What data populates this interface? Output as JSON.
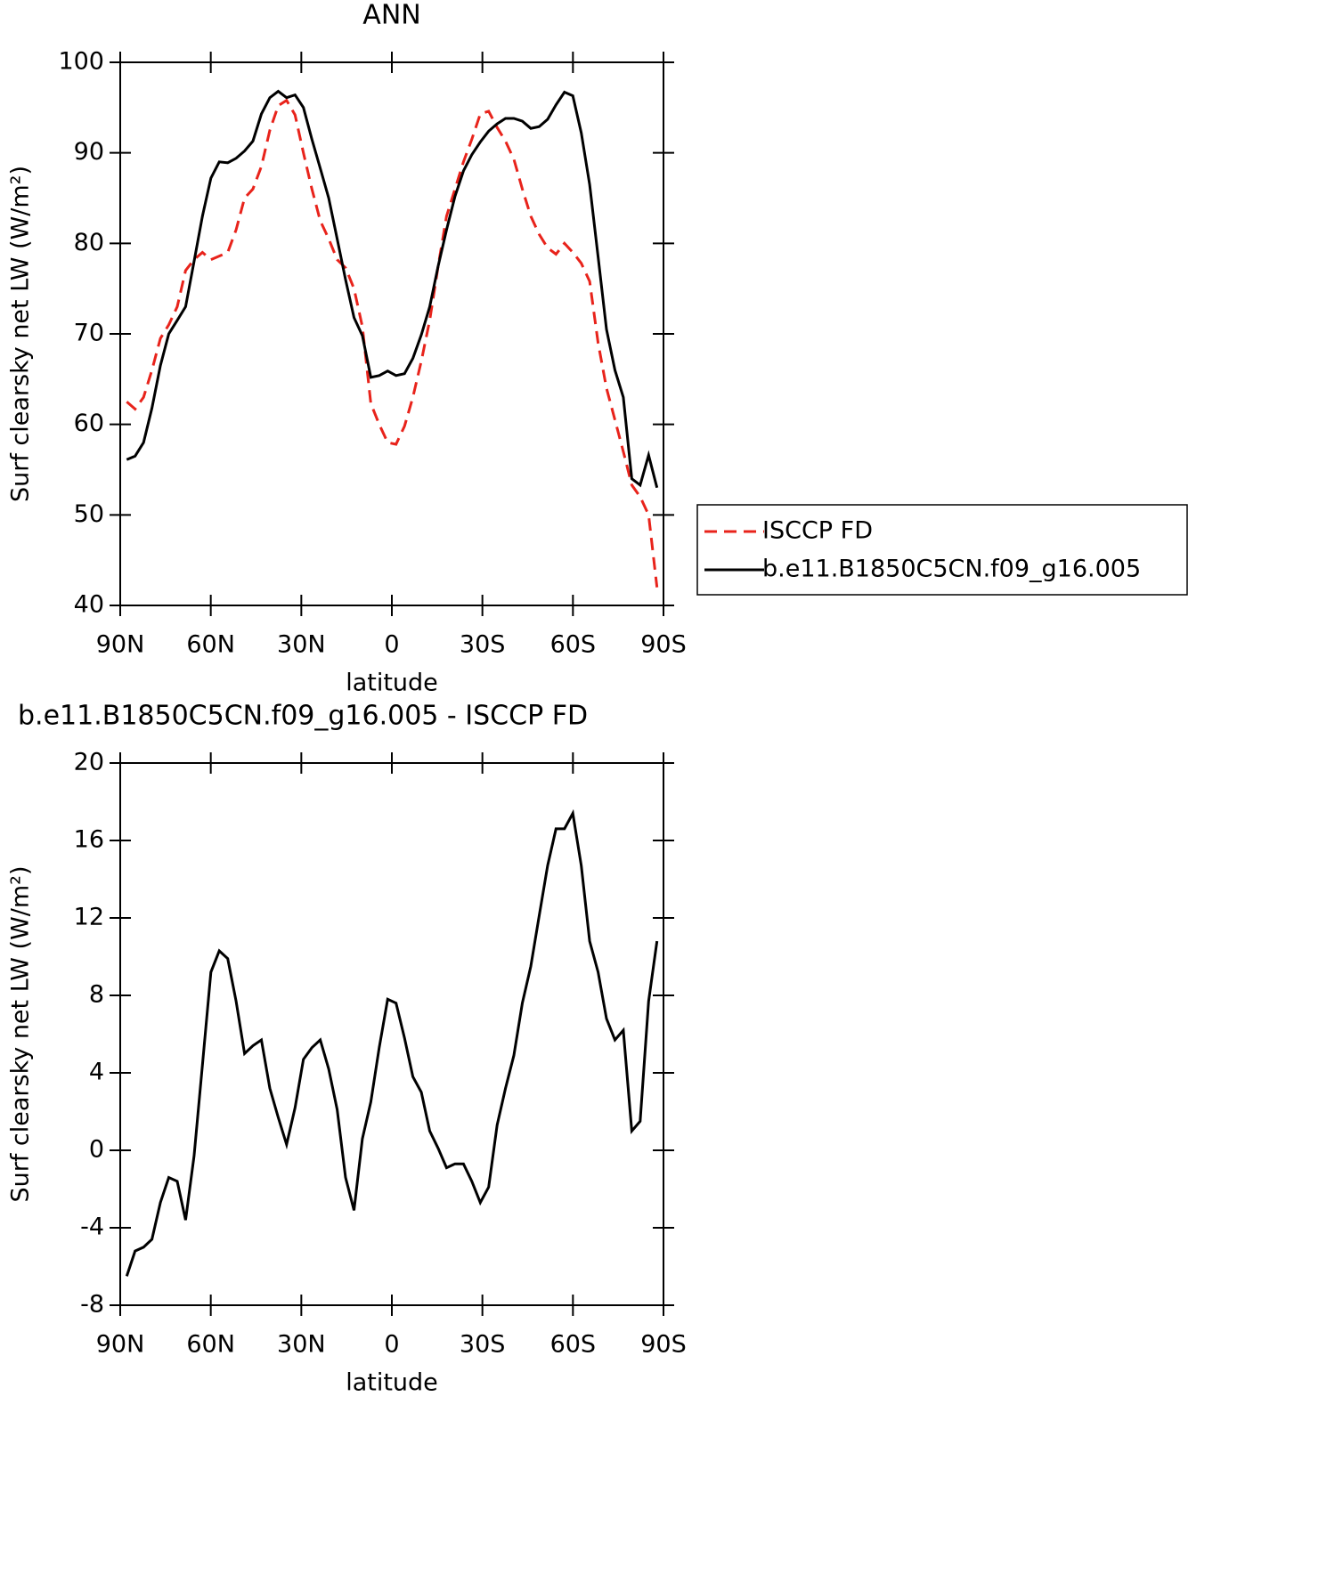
{
  "chart_data": [
    {
      "type": "line",
      "title": "ANN",
      "xlabel": "latitude",
      "ylabel": "Surf clearsky net LW (W/m²)",
      "x": [
        87.86,
        85.07,
        82.28,
        79.49,
        76.7,
        73.91,
        71.12,
        68.34,
        65.55,
        62.76,
        59.97,
        57.18,
        54.39,
        51.6,
        48.81,
        46.02,
        43.23,
        40.44,
        37.65,
        34.87,
        32.08,
        29.29,
        26.5,
        23.71,
        20.92,
        18.13,
        15.34,
        12.55,
        9.76,
        6.97,
        4.18,
        1.39,
        -1.39,
        -4.18,
        -6.97,
        -9.76,
        -12.55,
        -15.34,
        -18.13,
        -20.92,
        -23.71,
        -26.5,
        -29.29,
        -32.08,
        -34.87,
        -37.65,
        -40.44,
        -43.23,
        -46.02,
        -48.81,
        -51.6,
        -54.39,
        -57.18,
        -59.97,
        -62.76,
        -65.55,
        -68.34,
        -71.12,
        -73.91,
        -76.7,
        -79.49,
        -82.28,
        -85.07,
        -87.86
      ],
      "series": [
        {
          "name": "ISCCP FD",
          "color": "#e8231b",
          "dash": true,
          "values": [
            62.5,
            61.7,
            63,
            66,
            69.5,
            71,
            73,
            77,
            78.2,
            79,
            78.2,
            78.6,
            79,
            81.5,
            85,
            86,
            88.5,
            92.5,
            95.2,
            95.8,
            94.2,
            90,
            86,
            82.5,
            80.5,
            78.2,
            77.3,
            75,
            70.8,
            62.3,
            60,
            58,
            57.8,
            59.8,
            63,
            67,
            71.5,
            77.5,
            83,
            86,
            89,
            91.5,
            94.3,
            94.6,
            92.8,
            91.3,
            89.3,
            86,
            83,
            81,
            79.5,
            78.8,
            80,
            79,
            77.8,
            75.8,
            69,
            64,
            60.5,
            57,
            53.3,
            52,
            50,
            42
          ]
        },
        {
          "name": "b.e11.B1850C5CN.f09_g16.005",
          "color": "#000000",
          "dash": false,
          "values": [
            56.1,
            56.5,
            58,
            61.8,
            66.5,
            70,
            71.5,
            73,
            78,
            83,
            87.2,
            89,
            88.9,
            89.4,
            90.2,
            91.3,
            94.3,
            96.1,
            96.8,
            96.1,
            96.4,
            95,
            91.5,
            88.3,
            85,
            80.5,
            76,
            71.8,
            69.8,
            65.2,
            65.4,
            65.9,
            65.4,
            65.6,
            67.3,
            69.9,
            73,
            77.5,
            81.5,
            85.2,
            88,
            89.8,
            91.2,
            92.4,
            93.2,
            93.8,
            93.8,
            93.5,
            92.7,
            92.9,
            93.7,
            95.3,
            96.7,
            96.3,
            92.2,
            86.5,
            78.5,
            70.5,
            66,
            63,
            54,
            53.3,
            56.6,
            53
          ]
        }
      ],
      "xlim": [
        90,
        -90
      ],
      "xticks": [
        {
          "value": 90,
          "label": "90N"
        },
        {
          "value": 60,
          "label": "60N"
        },
        {
          "value": 30,
          "label": "30N"
        },
        0,
        {
          "value": -30,
          "label": "30S"
        },
        {
          "value": -60,
          "label": "60S"
        },
        {
          "value": -90,
          "label": "90S"
        }
      ],
      "ylim": [
        40,
        100
      ],
      "yticks": [
        40,
        50,
        60,
        70,
        80,
        90,
        100
      ],
      "legend": "right"
    },
    {
      "type": "line",
      "title": "b.e11.B1850C5CN.f09_g16.005 - ISCCP FD",
      "xlabel": "latitude",
      "ylabel": "Surf clearsky net LW (W/m²)",
      "x": [
        87.86,
        85.07,
        82.28,
        79.49,
        76.7,
        73.91,
        71.12,
        68.34,
        65.55,
        62.76,
        59.97,
        57.18,
        54.39,
        51.6,
        48.81,
        46.02,
        43.23,
        40.44,
        37.65,
        34.87,
        32.08,
        29.29,
        26.5,
        23.71,
        20.92,
        18.13,
        15.34,
        12.55,
        9.76,
        6.97,
        4.18,
        1.39,
        -1.39,
        -4.18,
        -6.97,
        -9.76,
        -12.55,
        -15.34,
        -18.13,
        -20.92,
        -23.71,
        -26.5,
        -29.29,
        -32.08,
        -34.87,
        -37.65,
        -40.44,
        -43.23,
        -46.02,
        -48.81,
        -51.6,
        -54.39,
        -57.18,
        -59.97,
        -62.76,
        -65.55,
        -68.34,
        -71.12,
        -73.91,
        -76.7,
        -79.49,
        -82.28,
        -85.07,
        -87.86
      ],
      "series": [
        {
          "color": "#000000",
          "dash": false,
          "values": [
            -6.5,
            -5.2,
            -5,
            -4.6,
            -2.7,
            -1.4,
            -1.6,
            -3.6,
            -0.3,
            4.4,
            9.2,
            10.3,
            9.9,
            7.7,
            5.0,
            5.4,
            5.7,
            3.2,
            1.7,
            0.3,
            2.2,
            4.7,
            5.3,
            5.7,
            4.2,
            2.1,
            -1.4,
            -3.1,
            0.6,
            2.5,
            5.3,
            7.8,
            7.6,
            5.8,
            3.8,
            3.0,
            1.0,
            0.1,
            -0.9,
            -0.7,
            -0.7,
            -1.6,
            -2.7,
            -1.9,
            1.3,
            3.2,
            4.9,
            7.6,
            9.5,
            12.1,
            14.7,
            16.6,
            16.6,
            17.4,
            14.7,
            10.8,
            9.2,
            6.8,
            5.7,
            6.2,
            1.0,
            1.5,
            7.7,
            10.8
          ]
        }
      ],
      "xlim": [
        90,
        -90
      ],
      "xticks": [
        {
          "value": 90,
          "label": "90N"
        },
        {
          "value": 60,
          "label": "60N"
        },
        {
          "value": 30,
          "label": "30N"
        },
        0,
        {
          "value": -30,
          "label": "30S"
        },
        {
          "value": -60,
          "label": "60S"
        },
        {
          "value": -90,
          "label": "90S"
        }
      ],
      "ylim": [
        -8,
        20
      ],
      "yticks": [
        -8,
        -4,
        0,
        4,
        8,
        12,
        16,
        20
      ]
    }
  ]
}
